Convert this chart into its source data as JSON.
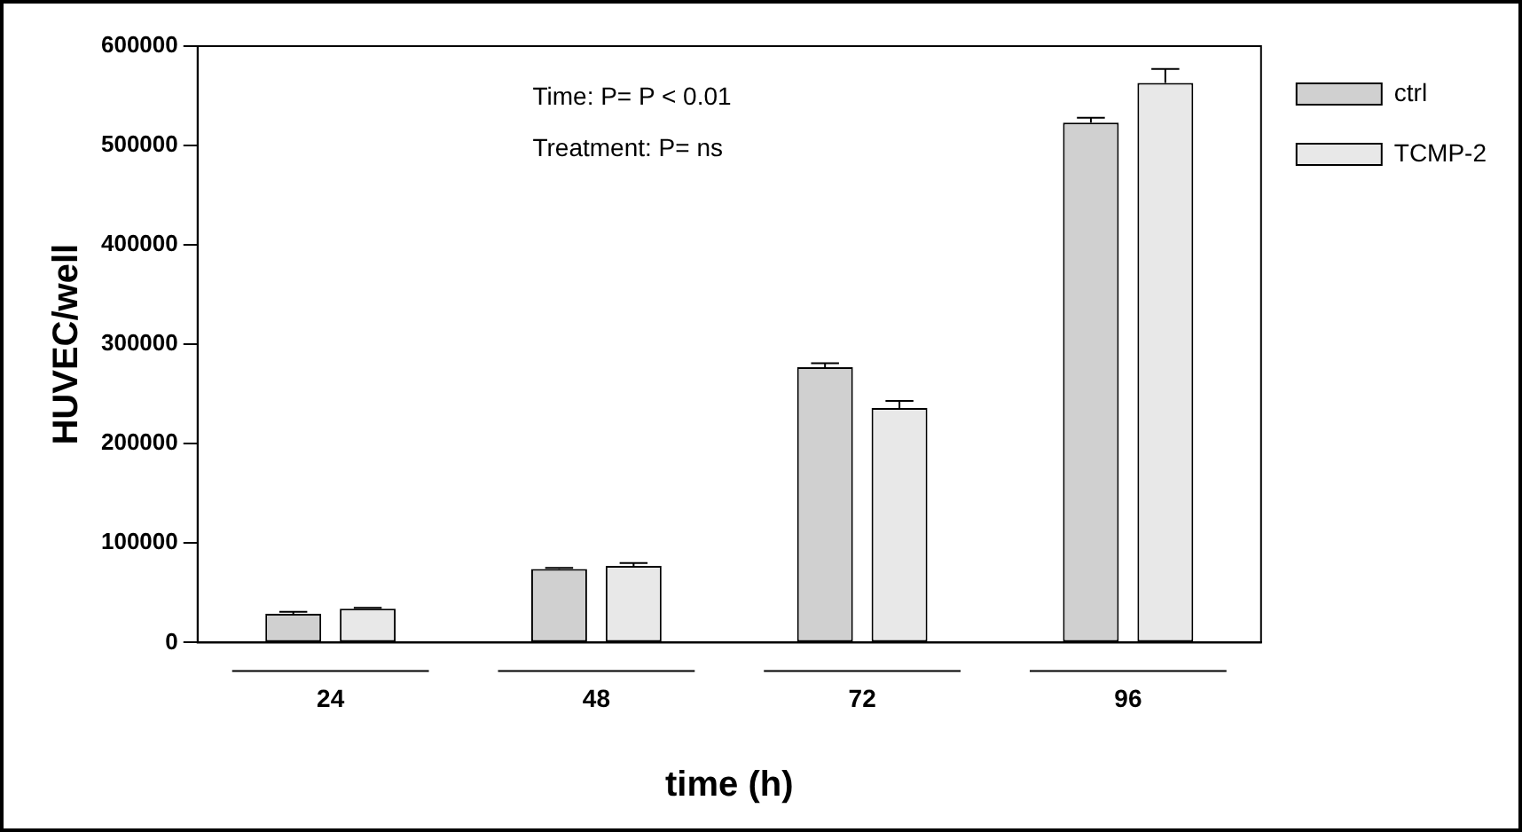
{
  "chart_data": {
    "type": "bar",
    "xlabel": "time (h)",
    "ylabel": "HUVEC/well",
    "categories": [
      "24",
      "48",
      "72",
      "96"
    ],
    "series": [
      {
        "name": "ctrl",
        "color": "#d0d0d0",
        "values": [
          29000,
          74000,
          277000,
          523000
        ],
        "errors": [
          [
            29000,
            31000
          ],
          [
            74000,
            75000
          ],
          [
            277000,
            281000
          ],
          [
            523000,
            528000
          ]
        ]
      },
      {
        "name": "TCMP-2",
        "color": "#e8e8e8",
        "values": [
          34000,
          77000,
          236000,
          563000
        ],
        "errors": [
          [
            34000,
            35000
          ],
          [
            77000,
            80000
          ],
          [
            236000,
            243000
          ],
          [
            563000,
            577000
          ]
        ]
      }
    ],
    "ylim": [
      0,
      600000
    ],
    "yticks": [
      0,
      100000,
      200000,
      300000,
      400000,
      500000,
      600000
    ],
    "grid": false,
    "legend": "top right",
    "annotations": [
      "Time: P= P < 0.01",
      "Treatment: P= ns"
    ]
  }
}
